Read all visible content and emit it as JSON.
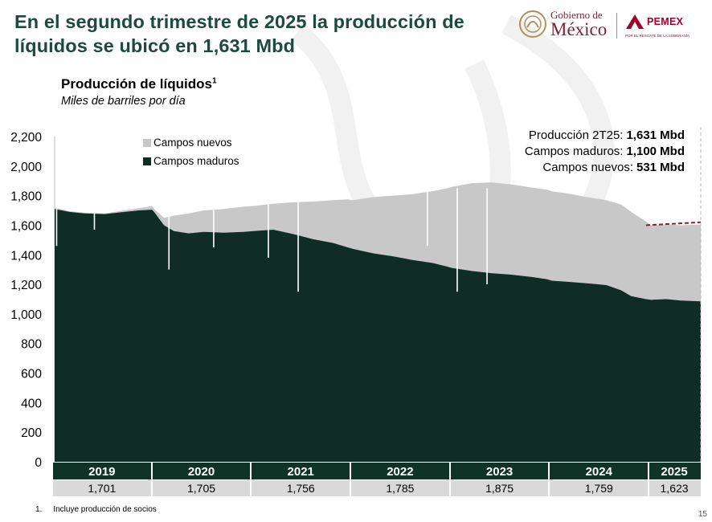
{
  "slide": {
    "title": "En el segundo trimestre de 2025 la producción de líquidos se ubicó en 1,631 Mbd",
    "page_number": "15"
  },
  "logos": {
    "gobierno_line1": "Gobierno de",
    "gobierno_line2": "México",
    "pemex_name": "PEMEX",
    "pemex_tagline": "POR EL RESCATE DE LA SOBERANÍA"
  },
  "chart": {
    "title": "Producción de líquidos",
    "title_sup": "1",
    "subtitle": "Miles de barriles por día"
  },
  "annotation": [
    {
      "label": "Producción 2T25:",
      "value": "1,631 Mbd"
    },
    {
      "label": "Campos maduros:",
      "value": "1,100 Mbd"
    },
    {
      "label": "Campos nuevos:",
      "value": "531 Mbd"
    }
  ],
  "footnote": {
    "number": "1.",
    "text": "Incluye producción de socios"
  },
  "chart_data": {
    "type": "area",
    "ylim": [
      0,
      2200
    ],
    "yticks": [
      "0",
      "200",
      "400",
      "600",
      "800",
      "1,000",
      "1,200",
      "1,400",
      "1,600",
      "1,800",
      "2,000",
      "2,200"
    ],
    "ytick_values": [
      0,
      200,
      400,
      600,
      800,
      1000,
      1200,
      1400,
      1600,
      1800,
      2000,
      2200
    ],
    "stacked": true,
    "legend_position": "top-left",
    "colors": {
      "mature": "#0f2d25",
      "new": "#c8c8c8",
      "projection": "#7a2533",
      "table_header": "#103327"
    },
    "series": [
      {
        "name": "Campos nuevos",
        "color": "#c8c8c8"
      },
      {
        "name": "Campos maduros",
        "color": "#0f2d25"
      }
    ],
    "years": [
      "2019",
      "2020",
      "2021",
      "2022",
      "2023",
      "2024",
      "2025"
    ],
    "year_totals": [
      "1,701",
      "1,705",
      "1,756",
      "1,785",
      "1,875",
      "1,759",
      "1,623"
    ],
    "year_bounds": [
      2019.0,
      2020.0,
      2021.0,
      2022.0,
      2023.0,
      2024.0,
      2025.0,
      2025.5
    ],
    "mature_series": [
      [
        2019.0,
        1710
      ],
      [
        2019.15,
        1690
      ],
      [
        2019.3,
        1680
      ],
      [
        2019.5,
        1675
      ],
      [
        2019.7,
        1690
      ],
      [
        2019.85,
        1700
      ],
      [
        2019.98,
        1705
      ],
      [
        2020.0,
        1690
      ],
      [
        2020.1,
        1600
      ],
      [
        2020.2,
        1560
      ],
      [
        2020.35,
        1545
      ],
      [
        2020.5,
        1555
      ],
      [
        2020.7,
        1550
      ],
      [
        2020.9,
        1555
      ],
      [
        2021.0,
        1560
      ],
      [
        2021.2,
        1570
      ],
      [
        2021.4,
        1540
      ],
      [
        2021.6,
        1505
      ],
      [
        2021.8,
        1480
      ],
      [
        2021.95,
        1450
      ],
      [
        2022.0,
        1440
      ],
      [
        2022.2,
        1410
      ],
      [
        2022.4,
        1390
      ],
      [
        2022.6,
        1365
      ],
      [
        2022.8,
        1345
      ],
      [
        2022.95,
        1320
      ],
      [
        2023.0,
        1310
      ],
      [
        2023.2,
        1290
      ],
      [
        2023.4,
        1275
      ],
      [
        2023.6,
        1265
      ],
      [
        2023.8,
        1250
      ],
      [
        2023.95,
        1235
      ],
      [
        2024.0,
        1225
      ],
      [
        2024.2,
        1215
      ],
      [
        2024.4,
        1205
      ],
      [
        2024.55,
        1195
      ],
      [
        2024.7,
        1160
      ],
      [
        2024.8,
        1120
      ],
      [
        2024.95,
        1100
      ],
      [
        2025.0,
        1095
      ],
      [
        2025.15,
        1100
      ],
      [
        2025.3,
        1090
      ],
      [
        2025.5,
        1085
      ]
    ],
    "total_series": [
      [
        2019.0,
        1720
      ],
      [
        2019.15,
        1695
      ],
      [
        2019.3,
        1685
      ],
      [
        2019.5,
        1680
      ],
      [
        2019.7,
        1700
      ],
      [
        2019.85,
        1715
      ],
      [
        2019.98,
        1730
      ],
      [
        2020.0,
        1710
      ],
      [
        2020.1,
        1650
      ],
      [
        2020.2,
        1665
      ],
      [
        2020.35,
        1680
      ],
      [
        2020.5,
        1700
      ],
      [
        2020.7,
        1710
      ],
      [
        2020.9,
        1725
      ],
      [
        2021.0,
        1730
      ],
      [
        2021.2,
        1745
      ],
      [
        2021.4,
        1755
      ],
      [
        2021.6,
        1760
      ],
      [
        2021.8,
        1770
      ],
      [
        2021.95,
        1775
      ],
      [
        2022.0,
        1770
      ],
      [
        2022.2,
        1790
      ],
      [
        2022.4,
        1800
      ],
      [
        2022.6,
        1810
      ],
      [
        2022.8,
        1830
      ],
      [
        2022.95,
        1850
      ],
      [
        2023.0,
        1860
      ],
      [
        2023.2,
        1885
      ],
      [
        2023.4,
        1890
      ],
      [
        2023.6,
        1875
      ],
      [
        2023.8,
        1855
      ],
      [
        2023.95,
        1840
      ],
      [
        2024.0,
        1830
      ],
      [
        2024.2,
        1810
      ],
      [
        2024.4,
        1785
      ],
      [
        2024.55,
        1770
      ],
      [
        2024.7,
        1740
      ],
      [
        2024.8,
        1690
      ],
      [
        2024.95,
        1625
      ],
      [
        2025.0,
        1600
      ],
      [
        2025.15,
        1605
      ],
      [
        2025.3,
        1600
      ],
      [
        2025.5,
        1605
      ]
    ],
    "dips": [
      [
        2019.02,
        1460
      ],
      [
        2019.4,
        1570
      ],
      [
        2020.15,
        1300
      ],
      [
        2020.6,
        1450
      ],
      [
        2021.15,
        1380
      ],
      [
        2021.45,
        1150
      ],
      [
        2022.75,
        1460
      ],
      [
        2023.05,
        1150
      ],
      [
        2023.35,
        1200
      ]
    ],
    "projection": [
      [
        2024.95,
        1600
      ],
      [
        2025.5,
        1620
      ]
    ]
  }
}
